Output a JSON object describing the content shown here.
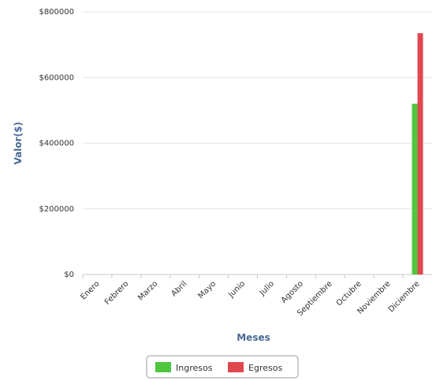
{
  "chart_data": {
    "type": "bar",
    "title": "",
    "xlabel": "Meses",
    "ylabel": "Valor($)",
    "categories": [
      "Enero",
      "Febrero",
      "Marzo",
      "Abril",
      "Mayo",
      "Junio",
      "Julio",
      "Agosto",
      "Septiembre",
      "Octubre",
      "Noviembre",
      "Diciembre"
    ],
    "series": [
      {
        "name": "Ingresos",
        "color": "#4ec63e",
        "values": [
          0,
          0,
          0,
          0,
          0,
          0,
          0,
          0,
          0,
          0,
          0,
          520000
        ]
      },
      {
        "name": "Egresos",
        "color": "#e0474f",
        "values": [
          0,
          0,
          0,
          0,
          0,
          0,
          0,
          0,
          0,
          0,
          0,
          735000
        ]
      }
    ],
    "ylim": [
      0,
      800000
    ],
    "yticks": [
      0,
      200000,
      400000,
      600000,
      800000
    ],
    "ytick_labels": [
      "$0",
      "$200000",
      "$400000",
      "$600000",
      "$800000"
    ],
    "grid": true,
    "legend_position": "bottom-center"
  }
}
